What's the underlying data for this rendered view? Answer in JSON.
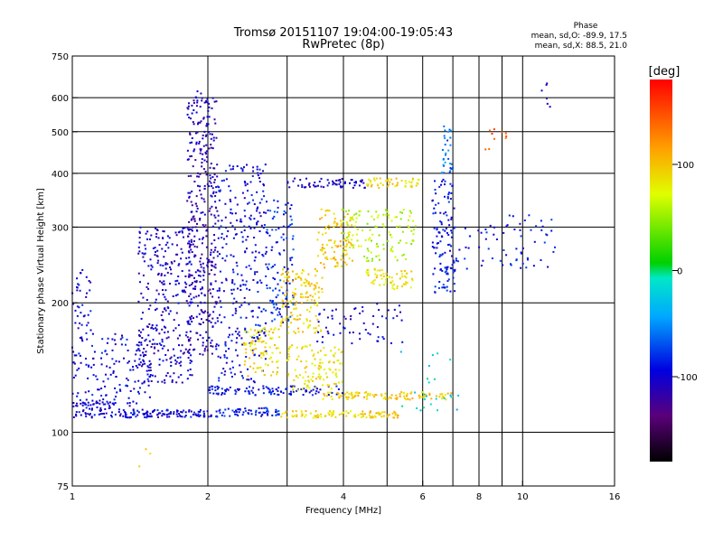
{
  "chart_data": {
    "type": "scatter",
    "title": "Tromsø 20151107 19:04:00-19:05:43",
    "subtitle": "RwPretec (8p)",
    "xlabel": "Frequency [MHz]",
    "ylabel": "Stationary phase Virtual Height [km]",
    "x_scale": "log",
    "y_scale": "log",
    "xlim": [
      1,
      16
    ],
    "ylim": [
      75,
      750
    ],
    "x_ticks": [
      1,
      2,
      4,
      6,
      8,
      10,
      16
    ],
    "x_tick_labels": [
      "1",
      "2",
      "4",
      "6",
      "8",
      "10",
      "16"
    ],
    "x_grid": [
      2,
      3,
      4,
      5,
      6,
      7,
      8,
      9,
      10
    ],
    "y_ticks": [
      75,
      100,
      200,
      300,
      400,
      500,
      600,
      750
    ],
    "y_tick_labels": [
      "75",
      "100",
      "200",
      "300",
      "400",
      "500",
      "600",
      "750"
    ],
    "y_grid": [
      100,
      200,
      300,
      400,
      500,
      600
    ],
    "grid": true,
    "stats": {
      "heading": "Phase",
      "line_o": "mean, sd,O: -89.9, 17.5",
      "line_x": "mean, sd,X: 88.5, 21.0"
    },
    "colorbar": {
      "label": "[deg]",
      "min": -180,
      "max": 180,
      "ticks": [
        100,
        0,
        -100
      ],
      "tick_labels": [
        "100",
        "0",
        "-100"
      ]
    },
    "clusters": [
      {
        "f": [
          1.0,
          1.25
        ],
        "h": [
          108,
          118
        ],
        "phase": -100,
        "count": 70
      },
      {
        "f": [
          1.25,
          2.1
        ],
        "h": [
          108,
          113
        ],
        "phase": -95,
        "count": 120
      },
      {
        "f": [
          2.1,
          2.9
        ],
        "h": [
          109,
          114
        ],
        "phase": -85,
        "count": 60
      },
      {
        "f": [
          2.9,
          4.4
        ],
        "h": [
          108,
          112
        ],
        "phase": 90,
        "count": 60
      },
      {
        "f": [
          4.4,
          5.3
        ],
        "h": [
          108,
          112
        ],
        "phase": 100,
        "count": 40
      },
      {
        "f": [
          2.0,
          4.0
        ],
        "h": [
          122,
          128
        ],
        "phase": -95,
        "count": 110
      },
      {
        "f": [
          3.6,
          7.0
        ],
        "h": [
          119,
          124
        ],
        "phase": 95,
        "count": 110
      },
      {
        "f": [
          1.0,
          1.5
        ],
        "h": [
          115,
          170
        ],
        "phase": -95,
        "count": 150
      },
      {
        "f": [
          1.0,
          1.1
        ],
        "h": [
          170,
          240
        ],
        "phase": -100,
        "count": 35
      },
      {
        "f": [
          1.4,
          1.85
        ],
        "h": [
          130,
          300
        ],
        "phase": -105,
        "count": 320
      },
      {
        "f": [
          1.8,
          2.1
        ],
        "h": [
          150,
          600
        ],
        "phase": -110,
        "count": 360
      },
      {
        "f": [
          2.1,
          2.7
        ],
        "h": [
          130,
          420
        ],
        "phase": -95,
        "count": 300
      },
      {
        "f": [
          2.7,
          3.1
        ],
        "h": [
          180,
          350
        ],
        "phase": -80,
        "count": 110
      },
      {
        "f": [
          2.4,
          2.9
        ],
        "h": [
          135,
          175
        ],
        "phase": 90,
        "count": 90
      },
      {
        "f": [
          2.9,
          3.6
        ],
        "h": [
          170,
          240
        ],
        "phase": 95,
        "count": 140
      },
      {
        "f": [
          3.0,
          4.0
        ],
        "h": [
          125,
          160
        ],
        "phase": 85,
        "count": 110
      },
      {
        "f": [
          3.5,
          4.2
        ],
        "h": [
          240,
          330
        ],
        "phase": 100,
        "count": 100
      },
      {
        "f": [
          4.0,
          5.8
        ],
        "h": [
          250,
          330
        ],
        "phase": 60,
        "count": 120
      },
      {
        "f": [
          4.5,
          5.7
        ],
        "h": [
          215,
          240
        ],
        "phase": 85,
        "count": 60
      },
      {
        "f": [
          3.0,
          4.5
        ],
        "h": [
          370,
          390
        ],
        "phase": -100,
        "count": 60
      },
      {
        "f": [
          4.5,
          5.9
        ],
        "h": [
          370,
          390
        ],
        "phase": 90,
        "count": 50
      },
      {
        "f": [
          6.3,
          7.1
        ],
        "h": [
          210,
          390
        ],
        "phase": -90,
        "count": 120
      },
      {
        "f": [
          6.6,
          7.0
        ],
        "h": [
          400,
          520
        ],
        "phase": -60,
        "count": 30
      },
      {
        "f": [
          3.5,
          5.5
        ],
        "h": [
          160,
          200
        ],
        "phase": -100,
        "count": 60
      },
      {
        "f": [
          7.0,
          12.0
        ],
        "h": [
          240,
          320
        ],
        "phase": -90,
        "count": 70
      },
      {
        "f": [
          8.0,
          9.5
        ],
        "h": [
          440,
          510
        ],
        "phase": 140,
        "count": 10
      },
      {
        "f": [
          11.0,
          11.6
        ],
        "h": [
          560,
          650
        ],
        "phase": -110,
        "count": 6
      },
      {
        "f": [
          1.8,
          2.0
        ],
        "h": [
          560,
          640
        ],
        "phase": -110,
        "count": 15
      },
      {
        "f": [
          1.4,
          1.5
        ],
        "h": [
          82,
          92
        ],
        "phase": 100,
        "count": 3
      },
      {
        "f": [
          5.3,
          7.2
        ],
        "h": [
          110,
          160
        ],
        "phase": -20,
        "count": 25
      }
    ]
  }
}
